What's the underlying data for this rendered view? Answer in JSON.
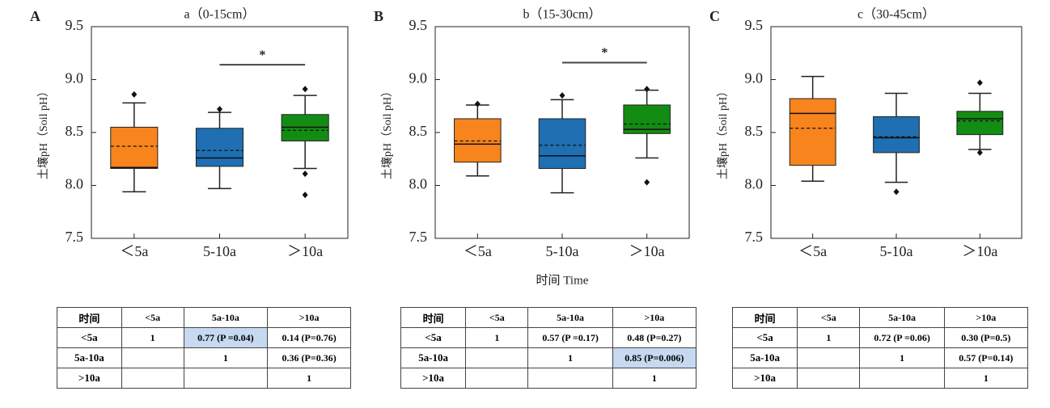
{
  "chart_data": [
    {
      "type": "box",
      "panel": "A",
      "title": "a（0-15cm）",
      "ylabel": "土壤pH（Soil pH）",
      "categories": [
        "＜5a",
        "5-10a",
        "＞10a"
      ],
      "colors": [
        "#f7841c",
        "#1f6fb2",
        "#138c13"
      ],
      "ylim": [
        7.5,
        9.5
      ],
      "yticks": [
        7.5,
        {
          "value": 8.0,
          "label": "8.0"
        },
        8.5,
        {
          "value": 9.0,
          "label": "9.0"
        },
        9.5
      ],
      "boxes": [
        {
          "min": 7.94,
          "q1": 8.16,
          "median": 8.17,
          "mean": 8.37,
          "q3": 8.55,
          "max": 8.78,
          "outliers": [
            8.86
          ]
        },
        {
          "min": 7.97,
          "q1": 8.18,
          "median": 8.26,
          "mean": 8.33,
          "q3": 8.54,
          "max": 8.69,
          "outliers": [
            8.72
          ]
        },
        {
          "min": 8.16,
          "q1": 8.42,
          "median": 8.55,
          "mean": 8.52,
          "q3": 8.67,
          "max": 8.85,
          "outliers": [
            8.91,
            8.11,
            7.91
          ]
        }
      ],
      "significance": {
        "from": 1,
        "to": 2,
        "y": 9.14,
        "label": "*"
      }
    },
    {
      "type": "box",
      "panel": "B",
      "title": "b（15-30cm）",
      "ylabel": "土壤pH（Soil pH）",
      "xlabel": "时间 Time",
      "categories": [
        "＜5a",
        "5-10a",
        "＞10a"
      ],
      "colors": [
        "#f7841c",
        "#1f6fb2",
        "#138c13"
      ],
      "ylim": [
        7.5,
        9.5
      ],
      "yticks": [
        7.5,
        {
          "value": 8.0,
          "label": "8.0"
        },
        8.5,
        {
          "value": 9.0,
          "label": "9.0"
        },
        9.5
      ],
      "boxes": [
        {
          "min": 8.09,
          "q1": 8.22,
          "median": 8.39,
          "mean": 8.42,
          "q3": 8.63,
          "max": 8.76,
          "outliers": [
            8.77
          ]
        },
        {
          "min": 7.93,
          "q1": 8.16,
          "median": 8.28,
          "mean": 8.38,
          "q3": 8.63,
          "max": 8.81,
          "outliers": [
            8.85
          ]
        },
        {
          "min": 8.26,
          "q1": 8.49,
          "median": 8.53,
          "mean": 8.58,
          "q3": 8.76,
          "max": 8.9,
          "outliers": [
            8.91,
            8.03
          ]
        }
      ],
      "significance": {
        "from": 1,
        "to": 2,
        "y": 9.16,
        "label": "*"
      }
    },
    {
      "type": "box",
      "panel": "C",
      "title": "c（30-45cm）",
      "ylabel": "土壤pH（Soil pH）",
      "categories": [
        "＜5a",
        "5-10a",
        "＞10a"
      ],
      "colors": [
        "#f7841c",
        "#1f6fb2",
        "#138c13"
      ],
      "ylim": [
        7.5,
        9.5
      ],
      "yticks": [
        7.5,
        {
          "value": 8.0,
          "label": "8.0"
        },
        8.5,
        {
          "value": 9.0,
          "label": "9.0"
        },
        9.5
      ],
      "boxes": [
        {
          "min": 8.04,
          "q1": 8.19,
          "median": 8.68,
          "mean": 8.54,
          "q3": 8.82,
          "max": 9.03,
          "outliers": []
        },
        {
          "min": 8.03,
          "q1": 8.31,
          "median": 8.45,
          "mean": 8.46,
          "q3": 8.65,
          "max": 8.87,
          "outliers": [
            7.94
          ]
        },
        {
          "min": 8.34,
          "q1": 8.48,
          "median": 8.63,
          "mean": 8.61,
          "q3": 8.7,
          "max": 8.87,
          "outliers": [
            8.97,
            8.31
          ]
        }
      ]
    }
  ],
  "tables": [
    {
      "header": [
        "时间",
        "<5a",
        "5a-10a",
        ">10a"
      ],
      "rows": [
        [
          "<5a",
          "1",
          "0.77 (P =0.04)",
          "0.14 (P=0.76)"
        ],
        [
          "5a-10a",
          null,
          "1",
          "0.36 (P=0.36)"
        ],
        [
          ">10a",
          null,
          null,
          "1"
        ]
      ],
      "highlighted": [
        [
          0,
          2
        ]
      ]
    },
    {
      "header": [
        "时间",
        "<5a",
        "5a-10a",
        ">10a"
      ],
      "rows": [
        [
          "<5a",
          "1",
          "0.57 (P =0.17)",
          "0.48 (P=0.27)"
        ],
        [
          "5a-10a",
          null,
          "1",
          "0.85 (P=0.006)"
        ],
        [
          ">10a",
          null,
          null,
          "1"
        ]
      ],
      "highlighted": [
        [
          1,
          3
        ]
      ]
    },
    {
      "header": [
        "时间",
        "<5a",
        "5a-10a",
        ">10a"
      ],
      "rows": [
        [
          "<5a",
          "1",
          "0.72 (P =0.06)",
          "0.30 (P=0.5)"
        ],
        [
          "5a-10a",
          null,
          "1",
          "0.57 (P=0.14)"
        ],
        [
          ">10a",
          null,
          null,
          "1"
        ]
      ],
      "highlighted": []
    }
  ]
}
